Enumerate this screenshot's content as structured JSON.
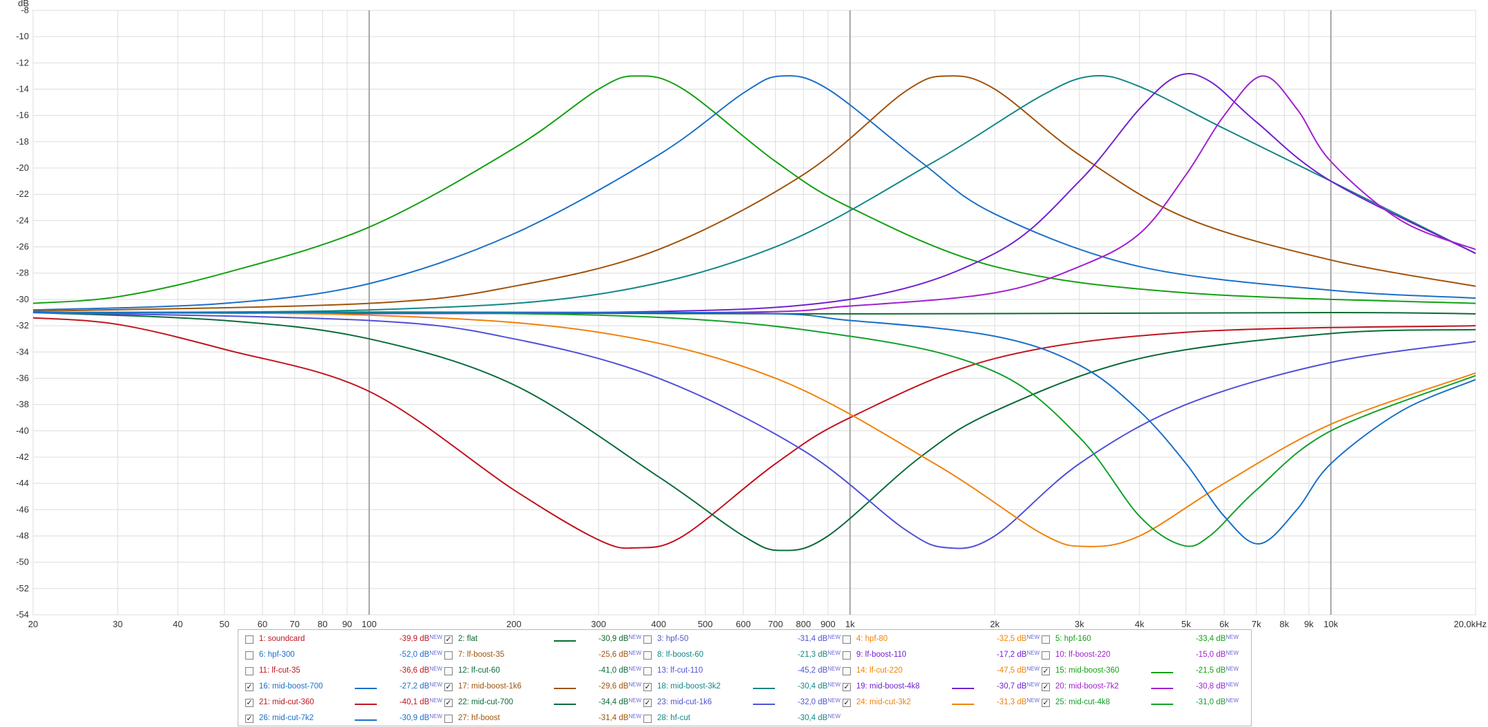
{
  "chart_data": {
    "type": "line",
    "title": "",
    "ylabel": "dB",
    "xlabel": "",
    "x_unit_label": "20,0kHz",
    "xscale": "log",
    "xlim": [
      20,
      20000
    ],
    "ylim": [
      -54,
      -8
    ],
    "grid": true,
    "legend_placement": "bottom-center",
    "y_ticks": [
      -8,
      -10,
      -12,
      -14,
      -16,
      -18,
      -20,
      -22,
      -24,
      -26,
      -28,
      -30,
      -32,
      -34,
      -36,
      -38,
      -40,
      -42,
      -44,
      -46,
      -48,
      -50,
      -52,
      -54
    ],
    "x_major_lines": [
      100,
      1000,
      10000
    ],
    "x_ticks": [
      {
        "v": 20,
        "label": "20"
      },
      {
        "v": 30,
        "label": "30"
      },
      {
        "v": 40,
        "label": "40"
      },
      {
        "v": 50,
        "label": "50"
      },
      {
        "v": 60,
        "label": "60"
      },
      {
        "v": 70,
        "label": "70"
      },
      {
        "v": 80,
        "label": "80"
      },
      {
        "v": 90,
        "label": "90"
      },
      {
        "v": 100,
        "label": "100"
      },
      {
        "v": 200,
        "label": "200"
      },
      {
        "v": 300,
        "label": "300"
      },
      {
        "v": 400,
        "label": "400"
      },
      {
        "v": 500,
        "label": "500"
      },
      {
        "v": 600,
        "label": "600"
      },
      {
        "v": 700,
        "label": "700"
      },
      {
        "v": 800,
        "label": "800"
      },
      {
        "v": 900,
        "label": "900"
      },
      {
        "v": 1000,
        "label": "1k"
      },
      {
        "v": 2000,
        "label": "2k"
      },
      {
        "v": 3000,
        "label": "3k"
      },
      {
        "v": 4000,
        "label": "4k"
      },
      {
        "v": 5000,
        "label": "5k"
      },
      {
        "v": 6000,
        "label": "6k"
      },
      {
        "v": 7000,
        "label": "7k"
      },
      {
        "v": 8000,
        "label": "8k"
      },
      {
        "v": 9000,
        "label": "9k"
      },
      {
        "v": 10000,
        "label": "10k"
      },
      {
        "v": 20000,
        "label": "20,0kHz"
      }
    ],
    "series": [
      {
        "name": "2: flat",
        "color": "#0a6b2e",
        "x": [
          20,
          100,
          1000,
          10000,
          20000
        ],
        "y": [
          -31,
          -31,
          -31.1,
          -31,
          -31.1
        ]
      },
      {
        "name": "15: mid-boost-360",
        "color": "#12a012",
        "x": [
          20,
          30,
          50,
          100,
          200,
          300,
          360,
          450,
          700,
          1000,
          2000,
          5000,
          20000
        ],
        "y": [
          -30.3,
          -29.8,
          -28,
          -24.5,
          -18.5,
          -14,
          -13,
          -14,
          -19.5,
          -23,
          -27.5,
          -29.5,
          -30.3
        ]
      },
      {
        "name": "16: mid-boost-700",
        "color": "#1a6fc8",
        "x": [
          20,
          50,
          100,
          200,
          400,
          600,
          720,
          900,
          1400,
          2000,
          4000,
          10000,
          20000
        ],
        "y": [
          -30.8,
          -30.3,
          -28.8,
          -25,
          -19,
          -14.3,
          -13,
          -14,
          -19.5,
          -23.5,
          -27.5,
          -29.3,
          -29.9
        ]
      },
      {
        "name": "17: mid-boost-1k6",
        "color": "#a0520a",
        "x": [
          20,
          100,
          200,
          400,
          800,
          1300,
          1600,
          2000,
          3000,
          5000,
          10000,
          20000
        ],
        "y": [
          -30.9,
          -30.3,
          -29,
          -26.2,
          -20.5,
          -14.2,
          -13,
          -14,
          -19,
          -23.8,
          -27,
          -29
        ]
      },
      {
        "name": "18: mid-boost-3k2",
        "color": "#138686",
        "x": [
          20,
          100,
          300,
          700,
          1500,
          2500,
          3200,
          4000,
          6000,
          10000,
          20000
        ],
        "y": [
          -31,
          -30.8,
          -29.6,
          -26,
          -19.5,
          -14.5,
          -13,
          -13.8,
          -17,
          -21,
          -26.5
        ]
      },
      {
        "name": "19: mid-boost-4k8",
        "color": "#7020d0",
        "x": [
          20,
          300,
          1000,
          2000,
          3000,
          4000,
          4800,
          5600,
          7000,
          10000,
          20000
        ],
        "y": [
          -31,
          -31,
          -30,
          -26.5,
          -21,
          -15.5,
          -13,
          -13.4,
          -16.5,
          -21,
          -26.5
        ]
      },
      {
        "name": "20: mid-boost-7k2",
        "color": "#a020d0",
        "x": [
          20,
          500,
          1000,
          2000,
          3000,
          4000,
          5000,
          6000,
          7200,
          8500,
          10000,
          14000,
          20000
        ],
        "y": [
          -31,
          -31,
          -30.5,
          -29.5,
          -27.5,
          -25,
          -20.5,
          -16,
          -13,
          -15.5,
          -19.5,
          -24,
          -26.2
        ]
      },
      {
        "name": "21: mid-cut-360",
        "color": "#c0141e",
        "x": [
          20,
          30,
          50,
          100,
          200,
          300,
          360,
          450,
          700,
          1000,
          2000,
          5000,
          20000
        ],
        "y": [
          -31.4,
          -31.9,
          -33.8,
          -37,
          -44.5,
          -48.3,
          -48.9,
          -48,
          -42.5,
          -39,
          -34.5,
          -32.5,
          -32
        ]
      },
      {
        "name": "22: mid-cut-700",
        "color": "#0a6b3a",
        "x": [
          20,
          50,
          100,
          200,
          400,
          600,
          720,
          900,
          1400,
          2000,
          4000,
          10000,
          20000
        ],
        "y": [
          -31,
          -31.6,
          -33,
          -36.5,
          -43.5,
          -48,
          -49.1,
          -48,
          -42,
          -38.5,
          -34.5,
          -32.6,
          -32.3
        ]
      },
      {
        "name": "23: mid-cut-1k6",
        "color": "#5050d8",
        "x": [
          20,
          100,
          200,
          400,
          800,
          1300,
          1600,
          2000,
          3000,
          5000,
          10000,
          20000
        ],
        "y": [
          -31,
          -31.6,
          -33,
          -36,
          -41.5,
          -47.5,
          -48.9,
          -48,
          -42.5,
          -38,
          -34.8,
          -33.2
        ]
      },
      {
        "name": "24: mid-cut-3k2",
        "color": "#f0820a",
        "x": [
          20,
          100,
          300,
          700,
          1500,
          2500,
          3100,
          4000,
          6000,
          10000,
          20000
        ],
        "y": [
          -31,
          -31.2,
          -32.5,
          -36,
          -42.5,
          -47.8,
          -48.8,
          -48,
          -44,
          -39.5,
          -35.6
        ]
      },
      {
        "name": "25: mid-cut-4k8",
        "color": "#12a02a",
        "x": [
          20,
          300,
          1000,
          2000,
          3000,
          4000,
          4900,
          5600,
          7000,
          10000,
          20000
        ],
        "y": [
          -31,
          -31.2,
          -32.8,
          -35.5,
          -40.5,
          -46.5,
          -48.7,
          -48,
          -44.5,
          -40,
          -35.8
        ]
      },
      {
        "name": "26: mid-cut-7k2",
        "color": "#1a6fc8",
        "x": [
          20,
          500,
          1000,
          2000,
          3000,
          4000,
          5000,
          6000,
          7100,
          8500,
          10000,
          14000,
          20000
        ],
        "y": [
          -31,
          -31,
          -31.6,
          -32.8,
          -35,
          -38.5,
          -42.5,
          -46.5,
          -48.6,
          -46,
          -42.5,
          -38.5,
          -36.1
        ]
      }
    ]
  },
  "legend": {
    "new_label": "NEW",
    "rows": [
      [
        {
          "checked": false,
          "label": "1: soundcard",
          "value": "-39,9 dB",
          "color": "#c0141e",
          "line": false
        },
        {
          "checked": true,
          "label": "2: flat",
          "value": "-30,9 dB",
          "color": "#0a6b2e",
          "line": true
        },
        {
          "checked": false,
          "label": "3: hpf-50",
          "value": "-31,4 dB",
          "color": "#5050d8",
          "line": false
        },
        {
          "checked": false,
          "label": "4: hpf-80",
          "value": "-32,5 dB",
          "color": "#f0820a",
          "line": false
        },
        {
          "checked": false,
          "label": "5: hpf-160",
          "value": "-33,4 dB",
          "color": "#12a012",
          "line": false
        }
      ],
      [
        {
          "checked": false,
          "label": "6: hpf-300",
          "value": "-52,0 dB",
          "color": "#1a6fc8",
          "line": false
        },
        {
          "checked": false,
          "label": "7: lf-boost-35",
          "value": "-25,6 dB",
          "color": "#a0520a",
          "line": false
        },
        {
          "checked": false,
          "label": "8: lf-boost-60",
          "value": "-21,3 dB",
          "color": "#138686",
          "line": false
        },
        {
          "checked": false,
          "label": "9: lf-boost-110",
          "value": "-17,2 dB",
          "color": "#7020d0",
          "line": false
        },
        {
          "checked": false,
          "label": "10: lf-boost-220",
          "value": "-15,0 dB",
          "color": "#a020d0",
          "line": false
        }
      ],
      [
        {
          "checked": false,
          "label": "11: lf-cut-35",
          "value": "-36,6 dB",
          "color": "#c0141e",
          "line": false
        },
        {
          "checked": false,
          "label": "12: lf-cut-60",
          "value": "-41,0 dB",
          "color": "#0a6b3a",
          "line": false
        },
        {
          "checked": false,
          "label": "13: lf-cut-110",
          "value": "-45,2 dB",
          "color": "#5050d8",
          "line": false
        },
        {
          "checked": false,
          "label": "14: lf-cut-220",
          "value": "-47,5 dB",
          "color": "#f0820a",
          "line": false
        },
        {
          "checked": true,
          "label": "15: mid-boost-360",
          "value": "-21,5 dB",
          "color": "#12a012",
          "line": true
        }
      ],
      [
        {
          "checked": true,
          "label": "16: mid-boost-700",
          "value": "-27,2 dB",
          "color": "#1a6fc8",
          "line": true
        },
        {
          "checked": true,
          "label": "17: mid-boost-1k6",
          "value": "-29,6 dB",
          "color": "#a0520a",
          "line": true
        },
        {
          "checked": true,
          "label": "18: mid-boost-3k2",
          "value": "-30,4 dB",
          "color": "#138686",
          "line": true
        },
        {
          "checked": true,
          "label": "19: mid-boost-4k8",
          "value": "-30,7 dB",
          "color": "#7020d0",
          "line": true
        },
        {
          "checked": true,
          "label": "20: mid-boost-7k2",
          "value": "-30,8 dB",
          "color": "#a020d0",
          "line": true
        }
      ],
      [
        {
          "checked": true,
          "label": "21: mid-cut-360",
          "value": "-40,1 dB",
          "color": "#c0141e",
          "line": true
        },
        {
          "checked": true,
          "label": "22: mid-cut-700",
          "value": "-34,4 dB",
          "color": "#0a6b3a",
          "line": true
        },
        {
          "checked": true,
          "label": "23: mid-cut-1k6",
          "value": "-32,0 dB",
          "color": "#5050d8",
          "line": true
        },
        {
          "checked": true,
          "label": "24: mid-cut-3k2",
          "value": "-31,3 dB",
          "color": "#f0820a",
          "line": true
        },
        {
          "checked": true,
          "label": "25: mid-cut-4k8",
          "value": "-31,0 dB",
          "color": "#12a02a",
          "line": true
        }
      ],
      [
        {
          "checked": true,
          "label": "26: mid-cut-7k2",
          "value": "-30,9 dB",
          "color": "#1a6fc8",
          "line": true
        },
        {
          "checked": false,
          "label": "27: hf-boost",
          "value": "-31,4 dB",
          "color": "#a0520a",
          "line": false
        },
        {
          "checked": false,
          "label": "28: hf-cut",
          "value": "-30,4 dB",
          "color": "#138686",
          "line": false
        }
      ]
    ]
  }
}
